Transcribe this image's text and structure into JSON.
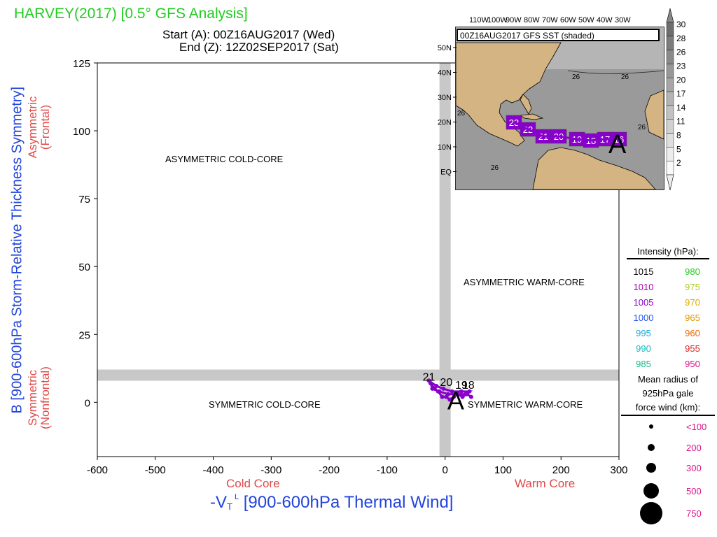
{
  "header": {
    "title": "HARVEY(2017) [0.5° GFS Analysis]",
    "start": "Start (A): 00Z16AUG2017 (Wed)",
    "end": "End (Z): 12Z02SEP2017 (Sat)"
  },
  "axes": {
    "ylabel": "B [900-600hPa Storm-Relative Thickness Symmetry]",
    "xlabel_prefix": "-V",
    "xlabel_sub": "T",
    "xlabel_sup": "L",
    "xlabel_rest": " [900-600hPa Thermal Wind]",
    "asym_line1": "Asymmetric",
    "asym_line2": "(Frontal)",
    "sym_line1": "Symmetric",
    "sym_line2": "(Nonfrontal)",
    "cold_core": "Cold Core",
    "warm_core": "Warm Core"
  },
  "quadrants": {
    "asym_cold": "ASYMMETRIC COLD-CORE",
    "asym_warm": "ASYMMETRIC WARM-CORE",
    "sym_cold": "SYMMETRIC COLD-CORE",
    "sym_warm": "SYMMETRIC WARM-CORE"
  },
  "chart_data": {
    "type": "scatter",
    "xlim": [
      -600,
      300
    ],
    "ylim": [
      -20,
      125
    ],
    "xticks": [
      -600,
      -500,
      -400,
      -300,
      -200,
      -100,
      0,
      100,
      200,
      300
    ],
    "yticks": [
      0,
      25,
      50,
      75,
      100,
      125
    ],
    "threshold_bands": {
      "x": 0,
      "y": 10
    },
    "track_color": "#8800cc",
    "start_marker": "A",
    "track": [
      {
        "x": 45,
        "y": 2
      },
      {
        "x": 38,
        "y": 3
      },
      {
        "x": 30,
        "y": 2
      },
      {
        "x": 22,
        "y": 3
      },
      {
        "x": 15,
        "y": 2
      },
      {
        "x": 8,
        "y": 1
      },
      {
        "x": 2,
        "y": 2
      },
      {
        "x": -5,
        "y": 2
      },
      {
        "x": -12,
        "y": 4
      },
      {
        "x": -18,
        "y": 5
      },
      {
        "x": -25,
        "y": 7
      },
      {
        "x": -22,
        "y": 5
      },
      {
        "x": -10,
        "y": 4
      },
      {
        "x": 5,
        "y": 3
      },
      {
        "x": 20,
        "y": 3
      },
      {
        "x": 35,
        "y": 3
      },
      {
        "x": 42,
        "y": 4
      },
      {
        "x": 28,
        "y": 4
      },
      {
        "x": 12,
        "y": 4
      },
      {
        "x": -3,
        "y": 5
      },
      {
        "x": -15,
        "y": 6
      },
      {
        "x": -28,
        "y": 8
      }
    ],
    "day_labels": [
      {
        "text": "21",
        "x": -28,
        "y": 8
      },
      {
        "text": "20",
        "x": 2,
        "y": 6
      },
      {
        "text": "19",
        "x": 28,
        "y": 5
      },
      {
        "text": "18",
        "x": 40,
        "y": 5
      }
    ]
  },
  "inset_map": {
    "caption": "00Z16AUG2017 GFS SST (shaded)",
    "lon_labels": [
      "110W",
      "100W",
      "90W",
      "80W",
      "70W",
      "60W",
      "50W",
      "40W",
      "30W"
    ],
    "lat_labels": [
      "50N",
      "40N",
      "30N",
      "20N",
      "10N",
      "EQ"
    ],
    "sst_contour_label": "26",
    "colorbar": [
      "30",
      "28",
      "26",
      "23",
      "20",
      "17",
      "14",
      "11",
      "8",
      "5",
      "2"
    ],
    "land_color": "#d4b483",
    "sea_color": "#9a9a9a",
    "boxes": [
      "23",
      "22",
      "21",
      "20",
      "19",
      "18",
      "17",
      "16"
    ],
    "box_color": "#8800cc",
    "start_marker": "A"
  },
  "legend": {
    "intensity_title": "Intensity (hPa):",
    "intensity": [
      {
        "left": "1015",
        "left_color": "#000000",
        "right": "980",
        "right_color": "#22cc22"
      },
      {
        "left": "1010",
        "left_color": "#aa00aa",
        "right": "975",
        "right_color": "#aacc22"
      },
      {
        "left": "1005",
        "left_color": "#8800cc",
        "right": "970",
        "right_color": "#ddaa00"
      },
      {
        "left": "1000",
        "left_color": "#2255ee",
        "right": "965",
        "right_color": "#dd9900"
      },
      {
        "left": "995",
        "left_color": "#11aadd",
        "right": "960",
        "right_color": "#ee6600"
      },
      {
        "left": "990",
        "left_color": "#11bbbb",
        "right": "955",
        "right_color": "#dd2222"
      },
      {
        "left": "985",
        "left_color": "#11bb88",
        "right": "950",
        "right_color": "#dd1188"
      }
    ],
    "radius_title_1": "Mean radius of",
    "radius_title_2": "925hPa gale",
    "radius_title_3": "force wind (km):",
    "radius": [
      "<100",
      "200",
      "300",
      "500",
      "750"
    ]
  }
}
